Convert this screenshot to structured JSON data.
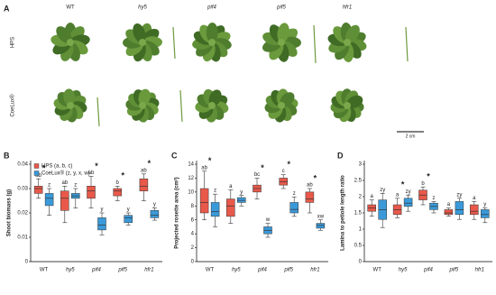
{
  "panel_a": {
    "label": "A",
    "genotypes": [
      "WT",
      "hy5",
      "pif4",
      "pif5",
      "hfr1"
    ],
    "conditions": [
      "HPS",
      "CoeLux®"
    ],
    "scale_bar": "2 cm"
  },
  "chart_data": [
    {
      "type": "box",
      "panel": "B",
      "ylabel": "Shoot biomass (g)",
      "categories": [
        "WT",
        "hy5",
        "pif4",
        "pif5",
        "hfr1"
      ],
      "ylim": [
        0,
        0.04
      ],
      "yticks": [
        0,
        0.01,
        0.02,
        0.03,
        0.04
      ],
      "legend": "upper left",
      "series": [
        {
          "name": "HPS (a, b, c)",
          "color": "#e8594a",
          "boxes": [
            [
              0.026,
              0.028,
              0.03,
              0.031,
              0.034
            ],
            [
              0.016,
              0.021,
              0.026,
              0.029,
              0.031
            ],
            [
              0.022,
              0.026,
              0.029,
              0.031,
              0.035
            ],
            [
              0.025,
              0.027,
              0.029,
              0.03,
              0.031
            ],
            [
              0.025,
              0.029,
              0.031,
              0.034,
              0.036
            ]
          ],
          "letters": [
            "ab",
            "ab",
            "ab",
            "b",
            "ab"
          ]
        },
        {
          "name": "CoeLux® (z, y, x, w)",
          "color": "#3a9ad9",
          "boxes": [
            [
              0.019,
              0.023,
              0.026,
              0.028,
              0.03
            ],
            [
              0.022,
              0.026,
              0.027,
              0.028,
              0.03
            ],
            [
              0.011,
              0.013,
              0.015,
              0.018,
              0.02
            ],
            [
              0.015,
              0.016,
              0.018,
              0.019,
              0.02
            ],
            [
              0.017,
              0.018,
              0.019,
              0.021,
              0.022
            ]
          ],
          "letters": [
            "z",
            "z",
            "y",
            "y",
            "y"
          ]
        }
      ],
      "sig_labels": [
        "*",
        null,
        "*",
        "*",
        "*"
      ]
    },
    {
      "type": "box",
      "panel": "C",
      "ylabel": "Projected rosette area (cm²)",
      "categories": [
        "WT",
        "hy5",
        "pif4",
        "pif5",
        "hfr1"
      ],
      "ylim": [
        0,
        14
      ],
      "yticks": [
        0,
        2,
        4,
        6,
        8,
        10,
        12,
        14
      ],
      "series": [
        {
          "color": "#e8594a",
          "boxes": [
            [
              6,
              7,
              8.5,
              10.5,
              13
            ],
            [
              5.5,
              6.5,
              8,
              9,
              10.3
            ],
            [
              9,
              10,
              10.5,
              11,
              12
            ],
            [
              10.5,
              11,
              11.5,
              12,
              12.5
            ],
            [
              7,
              8.5,
              9,
              10,
              10.5
            ]
          ],
          "letters": [
            "ab",
            "a",
            "bc",
            "c",
            "ab"
          ]
        },
        {
          "color": "#3a9ad9",
          "boxes": [
            [
              5,
              6.5,
              7.2,
              8.5,
              9.7
            ],
            [
              8,
              8.5,
              8.8,
              9.2,
              9.5
            ],
            [
              3.5,
              4,
              4.5,
              5,
              5.5
            ],
            [
              6.5,
              7,
              7.5,
              8.5,
              9.3
            ],
            [
              4.5,
              4.8,
              5.2,
              5.5,
              6
            ]
          ],
          "letters": [
            "z",
            "y",
            "w",
            "z",
            "xw"
          ]
        }
      ],
      "sig_labels": [
        "*",
        null,
        "*",
        "*",
        "*"
      ]
    },
    {
      "type": "box",
      "panel": "D",
      "ylabel": "Lamina to petiole length ratio",
      "categories": [
        "WT",
        "hy5",
        "pif4",
        "pif5",
        "hfr1"
      ],
      "ylim": [
        0,
        3
      ],
      "yticks": [
        0,
        0.5,
        1,
        1.5,
        2,
        2.5,
        3
      ],
      "series": [
        {
          "color": "#e8594a",
          "boxes": [
            [
              1.4,
              1.55,
              1.65,
              1.75,
              1.9
            ],
            [
              1.35,
              1.45,
              1.6,
              1.75,
              1.95
            ],
            [
              1.75,
              1.9,
              2.05,
              2.2,
              2.3
            ],
            [
              1.4,
              1.45,
              1.5,
              1.6,
              1.65
            ],
            [
              1.3,
              1.45,
              1.55,
              1.75,
              1.85
            ]
          ],
          "letters": [
            "a",
            "a",
            "b",
            "a",
            "a"
          ]
        },
        {
          "color": "#3a9ad9",
          "boxes": [
            [
              1.05,
              1.3,
              1.6,
              1.9,
              2.1
            ],
            [
              1.55,
              1.7,
              1.8,
              1.95,
              2.05
            ],
            [
              1.5,
              1.6,
              1.7,
              1.8,
              1.85
            ],
            [
              1.3,
              1.45,
              1.6,
              1.85,
              1.95
            ],
            [
              1.2,
              1.35,
              1.45,
              1.6,
              1.65
            ]
          ],
          "letters": [
            "zy",
            "zy",
            "z",
            "zy",
            "y"
          ]
        }
      ],
      "sig_labels": [
        null,
        "*",
        "*",
        null,
        null
      ]
    }
  ]
}
